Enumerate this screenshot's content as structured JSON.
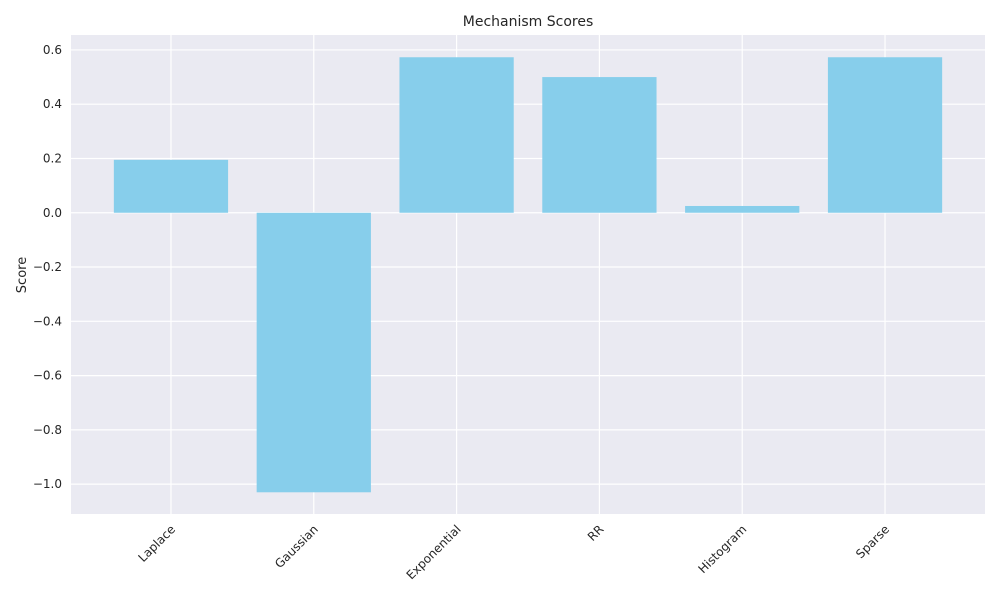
{
  "chart_data": {
    "type": "bar",
    "title": "Mechanism Scores",
    "xlabel": "",
    "ylabel": "Score",
    "categories": [
      "Laplace",
      "Gaussian",
      "Exponential",
      "RR",
      "Histogram",
      "Sparse"
    ],
    "values": [
      0.195,
      -1.03,
      0.573,
      0.5,
      0.025,
      0.573
    ],
    "ylim": [
      -1.11,
      0.655
    ],
    "yticks": [
      0.6,
      0.4,
      0.2,
      0.0,
      -0.2,
      -0.4,
      -0.6,
      -0.8,
      -1.0
    ],
    "ytick_labels": [
      "0.6",
      "0.4",
      "0.2",
      "0.0",
      "−0.2",
      "−0.4",
      "−0.6",
      "−0.8",
      "−1.0"
    ],
    "bar_color": "#87ceeb",
    "background_color": "#eaeaf2",
    "grid": true,
    "xtick_rotation": 45
  }
}
